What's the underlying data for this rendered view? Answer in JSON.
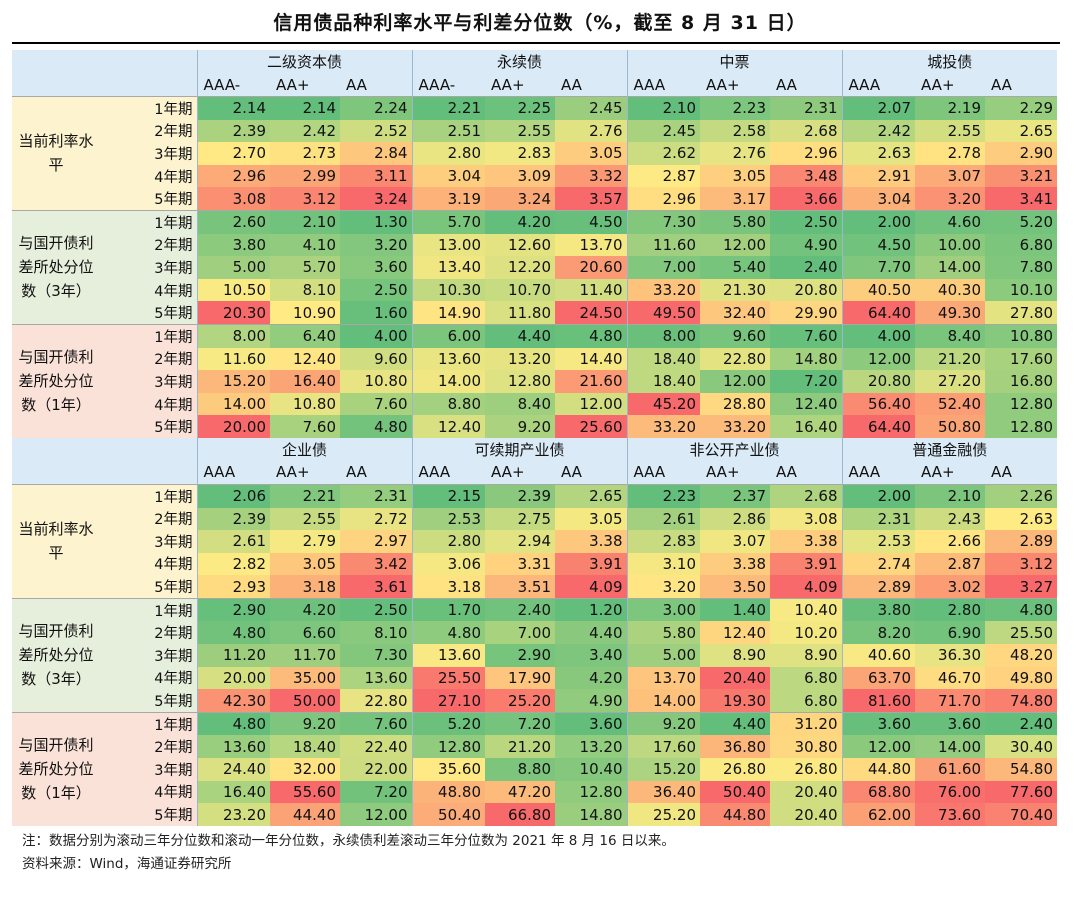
{
  "title": "信用债品种利率水平与利差分位数（%，截至 8 月 31 日）",
  "terms": [
    "1年期",
    "2年期",
    "3年期",
    "4年期",
    "5年期"
  ],
  "row_groups": [
    "当前利率水平",
    "与国开债利差所处分位数（3年）",
    "与国开债利差所处分位数（1年）"
  ],
  "colors": {
    "low": "#63be7b",
    "mid": "#ffeb84",
    "high": "#f8696b",
    "header_bg": "#daeaf7"
  },
  "sections": [
    {
      "categories": [
        {
          "name": "二级资本债",
          "grades": [
            "AAA-",
            "AA+",
            "AA"
          ]
        },
        {
          "name": "永续债",
          "grades": [
            "AAA-",
            "AA+",
            "AA"
          ]
        },
        {
          "name": "中票",
          "grades": [
            "AAA",
            "AA+",
            "AA"
          ]
        },
        {
          "name": "城投债",
          "grades": [
            "AAA",
            "AA+",
            "AA"
          ]
        }
      ],
      "groups": [
        {
          "label": "当前利率水平",
          "bg": "#fdf3cf",
          "rows": [
            [
              "2.14",
              "2.14",
              "2.24",
              "2.21",
              "2.25",
              "2.45",
              "2.10",
              "2.23",
              "2.31",
              "2.07",
              "2.19",
              "2.29"
            ],
            [
              "2.39",
              "2.42",
              "2.52",
              "2.51",
              "2.55",
              "2.76",
              "2.45",
              "2.58",
              "2.68",
              "2.42",
              "2.55",
              "2.65"
            ],
            [
              "2.70",
              "2.73",
              "2.84",
              "2.80",
              "2.83",
              "3.05",
              "2.62",
              "2.76",
              "2.96",
              "2.63",
              "2.78",
              "2.90"
            ],
            [
              "2.96",
              "2.99",
              "3.11",
              "3.04",
              "3.09",
              "3.32",
              "2.87",
              "3.05",
              "3.48",
              "2.91",
              "3.07",
              "3.21"
            ],
            [
              "3.08",
              "3.12",
              "3.24",
              "3.19",
              "3.24",
              "3.57",
              "2.96",
              "3.17",
              "3.66",
              "3.04",
              "3.20",
              "3.41"
            ]
          ]
        },
        {
          "label": "与国开债利差所处分位数（3年）",
          "bg": "#e6efdc",
          "rows": [
            [
              "2.60",
              "2.10",
              "1.30",
              "5.70",
              "4.20",
              "4.50",
              "7.30",
              "5.80",
              "2.50",
              "2.00",
              "4.60",
              "5.20"
            ],
            [
              "3.80",
              "4.10",
              "3.20",
              "13.00",
              "12.60",
              "13.70",
              "11.60",
              "12.00",
              "4.90",
              "4.50",
              "10.00",
              "6.80"
            ],
            [
              "5.00",
              "5.70",
              "3.60",
              "13.40",
              "12.20",
              "20.60",
              "7.00",
              "5.40",
              "2.40",
              "7.70",
              "14.00",
              "7.80"
            ],
            [
              "10.50",
              "8.10",
              "2.50",
              "10.30",
              "10.70",
              "11.40",
              "33.20",
              "21.30",
              "20.80",
              "40.50",
              "40.30",
              "10.10"
            ],
            [
              "20.30",
              "10.90",
              "1.60",
              "14.90",
              "11.80",
              "24.50",
              "49.50",
              "32.40",
              "29.90",
              "64.40",
              "49.30",
              "27.80"
            ]
          ]
        },
        {
          "label": "与国开债利差所处分位数（1年）",
          "bg": "#fae2d8",
          "rows": [
            [
              "8.00",
              "6.40",
              "4.00",
              "6.00",
              "4.40",
              "4.80",
              "8.00",
              "9.60",
              "7.60",
              "4.00",
              "8.40",
              "10.80"
            ],
            [
              "11.60",
              "12.40",
              "9.60",
              "13.60",
              "13.20",
              "14.40",
              "18.40",
              "22.80",
              "14.80",
              "12.00",
              "21.20",
              "17.60"
            ],
            [
              "15.20",
              "16.40",
              "10.80",
              "14.00",
              "12.80",
              "21.60",
              "18.40",
              "12.00",
              "7.20",
              "20.80",
              "27.20",
              "16.80"
            ],
            [
              "14.00",
              "10.80",
              "7.60",
              "8.80",
              "8.40",
              "12.00",
              "45.20",
              "28.80",
              "12.40",
              "56.40",
              "52.40",
              "12.80"
            ],
            [
              "20.00",
              "7.60",
              "4.80",
              "12.40",
              "9.20",
              "25.60",
              "33.20",
              "33.20",
              "16.40",
              "64.40",
              "50.80",
              "12.80"
            ]
          ]
        }
      ]
    },
    {
      "categories": [
        {
          "name": "企业债",
          "grades": [
            "AAA",
            "AA+",
            "AA"
          ]
        },
        {
          "name": "可续期产业债",
          "grades": [
            "AAA",
            "AA+",
            "AA"
          ]
        },
        {
          "name": "非公开产业债",
          "grades": [
            "AAA",
            "AA+",
            "AA"
          ]
        },
        {
          "name": "普通金融债",
          "grades": [
            "AAA",
            "AA+",
            "AA"
          ]
        }
      ],
      "groups": [
        {
          "label": "当前利率水平",
          "bg": "#fdf3cf",
          "rows": [
            [
              "2.06",
              "2.21",
              "2.31",
              "2.15",
              "2.39",
              "2.65",
              "2.23",
              "2.37",
              "2.68",
              "2.00",
              "2.10",
              "2.26"
            ],
            [
              "2.39",
              "2.55",
              "2.72",
              "2.53",
              "2.75",
              "3.05",
              "2.61",
              "2.86",
              "3.08",
              "2.31",
              "2.43",
              "2.63"
            ],
            [
              "2.61",
              "2.79",
              "2.97",
              "2.80",
              "2.94",
              "3.38",
              "2.83",
              "3.07",
              "3.38",
              "2.53",
              "2.66",
              "2.89"
            ],
            [
              "2.82",
              "3.05",
              "3.42",
              "3.06",
              "3.31",
              "3.91",
              "3.10",
              "3.38",
              "3.91",
              "2.74",
              "2.87",
              "3.12"
            ],
            [
              "2.93",
              "3.18",
              "3.61",
              "3.18",
              "3.51",
              "4.09",
              "3.20",
              "3.50",
              "4.09",
              "2.89",
              "3.02",
              "3.27"
            ]
          ]
        },
        {
          "label": "与国开债利差所处分位数（3年）",
          "bg": "#e6efdc",
          "rows": [
            [
              "2.90",
              "4.20",
              "2.50",
              "1.70",
              "2.40",
              "1.20",
              "3.00",
              "1.40",
              "10.40",
              "3.80",
              "2.80",
              "4.80"
            ],
            [
              "4.80",
              "6.60",
              "8.10",
              "4.80",
              "7.00",
              "4.40",
              "5.80",
              "12.40",
              "10.20",
              "8.20",
              "6.90",
              "25.50"
            ],
            [
              "11.20",
              "11.70",
              "7.30",
              "13.60",
              "2.90",
              "3.40",
              "5.00",
              "8.90",
              "8.90",
              "40.60",
              "36.30",
              "48.20"
            ],
            [
              "20.00",
              "35.00",
              "13.60",
              "25.50",
              "17.90",
              "4.20",
              "13.70",
              "20.40",
              "6.80",
              "63.70",
              "46.70",
              "49.80"
            ],
            [
              "42.30",
              "50.00",
              "22.80",
              "27.10",
              "25.20",
              "4.90",
              "14.00",
              "19.30",
              "6.80",
              "81.60",
              "71.70",
              "74.80"
            ]
          ]
        },
        {
          "label": "与国开债利差所处分位数（1年）",
          "bg": "#fae2d8",
          "rows": [
            [
              "4.80",
              "9.20",
              "7.60",
              "5.20",
              "7.20",
              "3.60",
              "9.20",
              "4.40",
              "31.20",
              "3.60",
              "3.60",
              "2.40"
            ],
            [
              "13.60",
              "18.40",
              "22.40",
              "12.80",
              "21.20",
              "13.20",
              "17.60",
              "36.80",
              "30.80",
              "12.00",
              "14.00",
              "30.40"
            ],
            [
              "24.40",
              "32.00",
              "22.00",
              "35.60",
              "8.80",
              "10.40",
              "15.20",
              "26.80",
              "26.80",
              "44.80",
              "61.60",
              "54.80"
            ],
            [
              "16.40",
              "55.60",
              "7.20",
              "48.80",
              "47.20",
              "12.80",
              "36.40",
              "50.40",
              "20.40",
              "68.80",
              "76.00",
              "77.60"
            ],
            [
              "23.20",
              "44.40",
              "12.00",
              "50.40",
              "66.80",
              "14.80",
              "25.20",
              "44.80",
              "20.40",
              "62.00",
              "73.60",
              "70.40"
            ]
          ]
        }
      ]
    }
  ],
  "note": "注：数据分别为滚动三年分位数和滚动一年分位数，永续债利差滚动三年分位数为 2021 年 8 月 16 日以来。",
  "source": "资料来源：Wind，海通证券研究所"
}
